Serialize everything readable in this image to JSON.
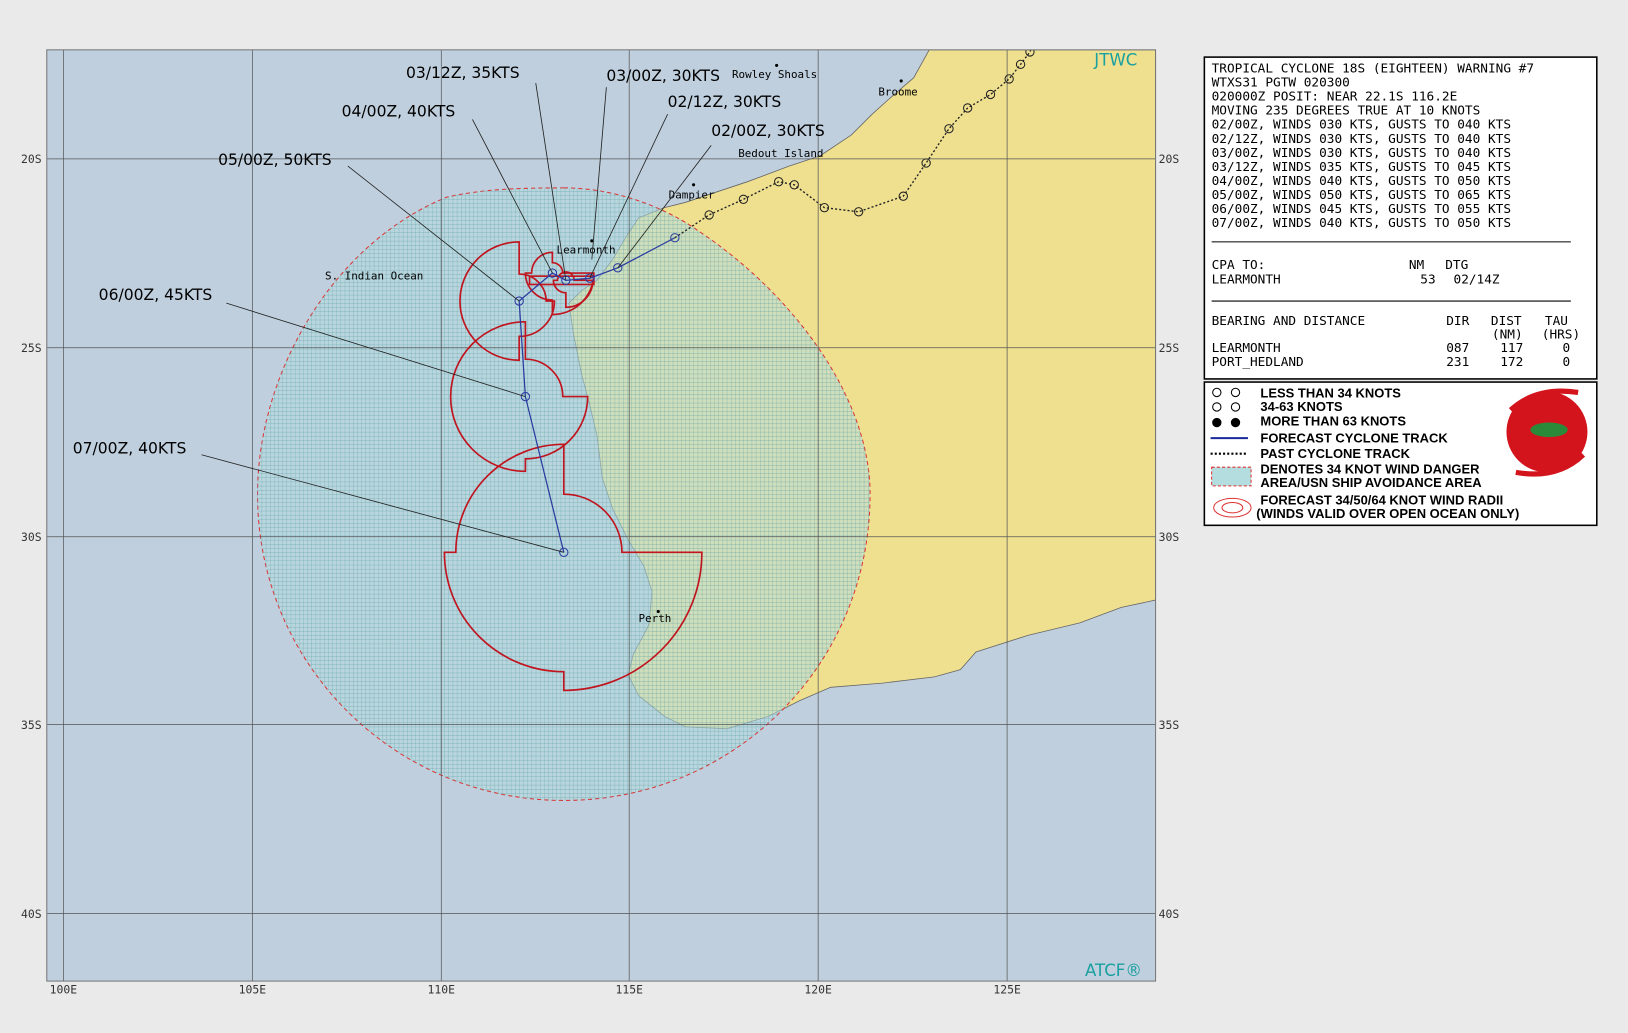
{
  "map": {
    "agency": "JTWC",
    "footer": "ATCF®",
    "lon_labels": [
      "100E",
      "105E",
      "110E",
      "115E",
      "120E",
      "125E"
    ],
    "lat_labels": [
      "20S",
      "25S",
      "30S",
      "35S",
      "40S"
    ],
    "places": [
      "Rowley Shoals",
      "Broome",
      "Bedout Island",
      "Dampier",
      "Learmonth",
      "S. Indian Ocean",
      "Perth"
    ],
    "forecast_labels": [
      "02/00Z, 30KTS",
      "02/12Z, 30KTS",
      "03/00Z, 30KTS",
      "03/12Z, 35KTS",
      "04/00Z, 40KTS",
      "05/00Z, 50KTS",
      "06/00Z, 45KTS",
      "07/00Z, 40KTS"
    ]
  },
  "warning": {
    "lines": [
      "TROPICAL CYCLONE 18S (EIGHTEEN) WARNING #7",
      "WTXS31 PGTW 020300",
      "020000Z POSIT: NEAR 22.1S 116.2E",
      "MOVING 235 DEGREES TRUE AT 10 KNOTS",
      "02/00Z, WINDS 030 KTS, GUSTS TO 040 KTS",
      "02/12Z, WINDS 030 KTS, GUSTS TO 040 KTS",
      "03/00Z, WINDS 030 KTS, GUSTS TO 040 KTS",
      "03/12Z, WINDS 035 KTS, GUSTS TO 045 KTS",
      "04/00Z, WINDS 040 KTS, GUSTS TO 050 KTS",
      "05/00Z, WINDS 050 KTS, GUSTS TO 065 KTS",
      "06/00Z, WINDS 045 KTS, GUSTS TO 055 KTS",
      "07/00Z, WINDS 040 KTS, GUSTS TO 050 KTS"
    ],
    "cpa": {
      "header": [
        "CPA TO:",
        "NM",
        "DTG"
      ],
      "rows": [
        [
          "LEARMONTH",
          "53",
          "02/14Z"
        ]
      ]
    },
    "bearing": {
      "header": [
        "BEARING AND DISTANCE",
        "DIR",
        "DIST",
        "TAU"
      ],
      "subheader": [
        "(NM)",
        "(HRS)"
      ],
      "rows": [
        [
          "LEARMONTH",
          "087",
          "117",
          "0"
        ],
        [
          "PORT_HEDLAND",
          "231",
          "172",
          "0"
        ]
      ]
    }
  },
  "legend": {
    "items": [
      "LESS THAN 34 KNOTS",
      "34-63 KNOTS",
      "MORE THAN 63 KNOTS",
      "FORECAST CYCLONE TRACK",
      "PAST CYCLONE TRACK",
      "DENOTES 34 KNOT WIND DANGER",
      "AREA/USN SHIP AVOIDANCE AREA",
      "FORECAST 34/50/64 KNOT WIND RADII",
      "(WINDS VALID OVER OPEN OCEAN ONLY)"
    ]
  }
}
